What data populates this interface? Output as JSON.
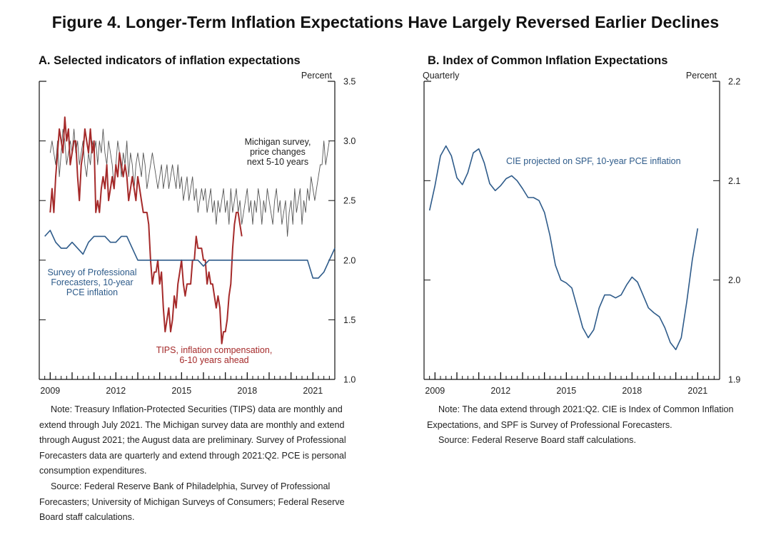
{
  "figure_title": "Figure 4. Longer-Term Inflation Expectations Have Largely Reversed Earlier Declines",
  "chart_data": [
    {
      "type": "line",
      "title": "A. Selected indicators of inflation expectations",
      "unit_label": "Percent",
      "ylim": [
        1.0,
        3.5
      ],
      "yticks": [
        1.0,
        1.5,
        2.0,
        2.5,
        3.0,
        3.5
      ],
      "ytick_labels": [
        "1.0",
        "1.5",
        "2.0",
        "2.5",
        "3.0",
        "3.5"
      ],
      "xlim": [
        2008.5,
        2022.0
      ],
      "xticks": [
        2009,
        2012,
        2015,
        2018,
        2021
      ],
      "xtick_labels": [
        "2009",
        "2012",
        "2015",
        "2018",
        "2021"
      ],
      "series": [
        {
          "name": "Michigan survey, price changes next 5-10 years",
          "label_lines": [
            "Michigan survey,",
            "price changes",
            "next 5-10 years"
          ],
          "color": "#555555",
          "frequency": "monthly",
          "start": 2009.0,
          "values": [
            2.9,
            3.0,
            2.9,
            2.8,
            3.0,
            2.7,
            2.9,
            3.1,
            3.0,
            2.8,
            2.9,
            3.0,
            2.9,
            3.1,
            2.9,
            3.0,
            2.8,
            2.9,
            3.0,
            2.8,
            2.7,
            2.9,
            2.8,
            3.0,
            2.9,
            3.0,
            2.8,
            3.0,
            2.9,
            3.1,
            2.9,
            2.8,
            3.0,
            2.9,
            2.8,
            2.6,
            2.8,
            3.0,
            2.9,
            2.7,
            2.9,
            2.8,
            3.0,
            2.7,
            2.9,
            2.8,
            2.6,
            2.8,
            2.9,
            2.8,
            2.7,
            2.9,
            2.8,
            2.6,
            2.7,
            2.8,
            2.9,
            2.8,
            2.7,
            2.6,
            2.7,
            2.8,
            2.6,
            2.7,
            2.8,
            2.6,
            2.7,
            2.8,
            2.7,
            2.6,
            2.8,
            2.6,
            2.7,
            2.5,
            2.6,
            2.7,
            2.5,
            2.6,
            2.7,
            2.5,
            2.6,
            2.4,
            2.5,
            2.6,
            2.5,
            2.6,
            2.4,
            2.5,
            2.6,
            2.4,
            2.5,
            2.3,
            2.5,
            2.4,
            2.5,
            2.6,
            2.4,
            2.5,
            2.3,
            2.6,
            2.4,
            2.5,
            2.6,
            2.4,
            2.5,
            2.3,
            2.4,
            2.5,
            2.6,
            2.4,
            2.5,
            2.3,
            2.5,
            2.4,
            2.6,
            2.5,
            2.3,
            2.5,
            2.4,
            2.6,
            2.5,
            2.4,
            2.3,
            2.5,
            2.6,
            2.4,
            2.5,
            2.3,
            2.4,
            2.5,
            2.2,
            2.4,
            2.5,
            2.3,
            2.6,
            2.4,
            2.5,
            2.6,
            2.3,
            2.5,
            2.4,
            2.6,
            2.5,
            2.7,
            2.6,
            2.5,
            2.6,
            2.7,
            2.8,
            2.8,
            3.0,
            2.8,
            2.9,
            3.0
          ]
        },
        {
          "name": "TIPS, inflation compensation, 6-10 years ahead",
          "label_lines": [
            "TIPS, inflation compensation,",
            "6-10 years ahead"
          ],
          "color": "#a52a2a",
          "frequency": "monthly",
          "start": 2009.0,
          "values": [
            2.4,
            2.6,
            2.4,
            2.7,
            2.9,
            3.1,
            3.0,
            2.9,
            3.2,
            3.0,
            3.1,
            2.8,
            2.9,
            3.0,
            3.0,
            2.7,
            2.5,
            2.8,
            2.9,
            3.1,
            3.0,
            2.9,
            3.1,
            2.9,
            3.0,
            2.4,
            2.5,
            2.4,
            2.6,
            2.7,
            2.6,
            2.8,
            2.5,
            2.6,
            2.7,
            2.6,
            2.8,
            2.7,
            2.9,
            2.8,
            2.7,
            2.8,
            2.7,
            2.5,
            2.6,
            2.7,
            2.6,
            2.5,
            2.7,
            2.6,
            2.5,
            2.4,
            2.4,
            2.4,
            2.3,
            2.0,
            1.8,
            1.9,
            1.9,
            2.0,
            1.8,
            1.9,
            1.6,
            1.4,
            1.5,
            1.6,
            1.4,
            1.5,
            1.7,
            1.6,
            1.8,
            1.9,
            2.0,
            1.8,
            1.7,
            1.8,
            1.8,
            1.8,
            2.0,
            2.0,
            2.2,
            2.1,
            2.1,
            2.1,
            2.0,
            2.0,
            1.8,
            1.9,
            1.8,
            1.8,
            1.7,
            1.6,
            1.7,
            1.6,
            1.3,
            1.4,
            1.4,
            1.5,
            1.7,
            1.8,
            2.1,
            2.3,
            2.4,
            2.4,
            2.3,
            2.2
          ]
        },
        {
          "name": "Survey of Professional Forecasters, 10-year PCE inflation",
          "label_lines": [
            "Survey of Professional",
            "Forecasters, 10-year",
            "PCE inflation"
          ],
          "color": "#2e5b8a",
          "frequency": "quarterly",
          "start": 2008.75,
          "values": [
            2.2,
            2.25,
            2.15,
            2.1,
            2.1,
            2.15,
            2.1,
            2.05,
            2.15,
            2.2,
            2.2,
            2.2,
            2.15,
            2.15,
            2.2,
            2.2,
            2.1,
            2.0,
            2.0,
            2.0,
            2.0,
            2.0,
            2.0,
            2.0,
            2.0,
            2.0,
            2.0,
            2.0,
            2.0,
            1.95,
            2.0,
            2.0,
            2.0,
            2.0,
            2.0,
            2.0,
            2.0,
            2.0,
            2.0,
            2.0,
            2.0,
            2.0,
            2.0,
            2.0,
            2.0,
            2.0,
            2.0,
            2.0,
            2.0,
            1.85,
            1.85,
            1.9,
            2.0,
            2.1
          ]
        }
      ]
    },
    {
      "type": "line",
      "title": "B. Index of Common Inflation Expectations",
      "frequency_label": "Quarterly",
      "unit_label": "Percent",
      "ylim": [
        1.9,
        2.2
      ],
      "yticks": [
        1.9,
        2.0,
        2.1,
        2.2
      ],
      "ytick_labels": [
        "1.9",
        "2.0",
        "2.1",
        "2.2"
      ],
      "xlim": [
        2008.5,
        2022.0
      ],
      "xticks": [
        2009,
        2012,
        2015,
        2018,
        2021
      ],
      "xtick_labels": [
        "2009",
        "2012",
        "2015",
        "2018",
        "2021"
      ],
      "series": [
        {
          "name": "CIE projected on SPF, 10-year PCE inflation",
          "label_lines": [
            "CIE projected on SPF, 10-year PCE inflation"
          ],
          "color": "#2e5b8a",
          "frequency": "quarterly",
          "start": 2008.75,
          "values": [
            2.07,
            2.095,
            2.125,
            2.135,
            2.125,
            2.103,
            2.096,
            2.108,
            2.128,
            2.132,
            2.118,
            2.097,
            2.09,
            2.095,
            2.102,
            2.105,
            2.1,
            2.092,
            2.083,
            2.083,
            2.08,
            2.068,
            2.045,
            2.015,
            2.0,
            1.997,
            1.992,
            1.972,
            1.952,
            1.942,
            1.95,
            1.972,
            1.985,
            1.985,
            1.982,
            1.985,
            1.995,
            2.003,
            1.998,
            1.985,
            1.972,
            1.967,
            1.963,
            1.952,
            1.937,
            1.93,
            1.942,
            1.978,
            2.02,
            2.052
          ]
        }
      ]
    }
  ],
  "notes": {
    "panel_a": [
      "Note: Treasury Inflation-Protected Securities (TIPS) data are monthly and extend through July 2021. The Michigan survey data are monthly and extend through August 2021; the August data are preliminary. Survey of Professional Forecasters data are quarterly and extend through 2021:Q2. PCE is personal consumption expenditures.",
      "Source: Federal Reserve Bank of Philadelphia, Survey of Professional Forecasters; University of Michigan Surveys of Consumers; Federal Reserve Board staff calculations."
    ],
    "panel_b": [
      "Note: The data extend through 2021:Q2. CIE is Index of Common Inflation Expectations, and SPF is Survey of Professional Forecasters.",
      "Source: Federal Reserve Board staff calculations."
    ]
  }
}
